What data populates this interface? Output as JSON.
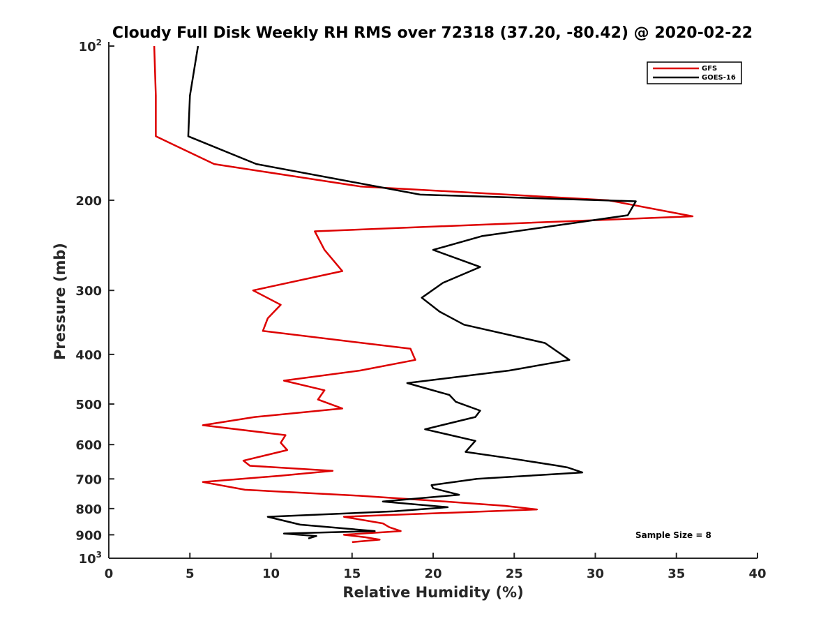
{
  "chart_data": {
    "type": "line",
    "title": "Cloudy Full Disk Weekly RH RMS over 72318 (37.20, -80.42) @ 2020-02-22",
    "xlabel": "Relative Humidity (%)",
    "ylabel": "Pressure (mb)",
    "xlim": [
      0,
      40
    ],
    "ylim": [
      100,
      1000
    ],
    "yscale": "log",
    "yreversed": true,
    "xticks": [
      0,
      5,
      10,
      15,
      20,
      25,
      30,
      35,
      40
    ],
    "yticks": [
      {
        "value": 100,
        "label": "10",
        "sup": "2"
      },
      {
        "value": 200,
        "label": "200",
        "sup": ""
      },
      {
        "value": 300,
        "label": "300",
        "sup": ""
      },
      {
        "value": 400,
        "label": "400",
        "sup": ""
      },
      {
        "value": 500,
        "label": "500",
        "sup": ""
      },
      {
        "value": 600,
        "label": "600",
        "sup": ""
      },
      {
        "value": 700,
        "label": "700",
        "sup": ""
      },
      {
        "value": 800,
        "label": "800",
        "sup": ""
      },
      {
        "value": 900,
        "label": "900",
        "sup": ""
      },
      {
        "value": 1000,
        "label": "10",
        "sup": "3"
      }
    ],
    "legend": {
      "position": "top-right",
      "entries": [
        "GFS",
        "GOES-16"
      ]
    },
    "annotation": "Sample Size = 8",
    "series": [
      {
        "name": "GFS",
        "color": "#dd0000",
        "points": [
          [
            2.8,
            100
          ],
          [
            2.9,
            125
          ],
          [
            2.9,
            150
          ],
          [
            6.5,
            170
          ],
          [
            15.5,
            188
          ],
          [
            30.8,
            200
          ],
          [
            36.0,
            215
          ],
          [
            12.7,
            230
          ],
          [
            13.3,
            250
          ],
          [
            14.4,
            275
          ],
          [
            8.9,
            300
          ],
          [
            10.6,
            320
          ],
          [
            9.8,
            340
          ],
          [
            9.5,
            360
          ],
          [
            18.6,
            390
          ],
          [
            18.9,
            410
          ],
          [
            15.5,
            430
          ],
          [
            10.8,
            450
          ],
          [
            13.3,
            470
          ],
          [
            12.9,
            490
          ],
          [
            14.4,
            510
          ],
          [
            9.0,
            530
          ],
          [
            5.8,
            550
          ],
          [
            10.9,
            575
          ],
          [
            10.6,
            595
          ],
          [
            11.0,
            615
          ],
          [
            8.3,
            645
          ],
          [
            8.7,
            660
          ],
          [
            13.8,
            675
          ],
          [
            10.6,
            690
          ],
          [
            5.8,
            710
          ],
          [
            8.4,
            735
          ],
          [
            15.4,
            755
          ],
          [
            19.5,
            770
          ],
          [
            24.4,
            790
          ],
          [
            26.4,
            803
          ],
          [
            14.5,
            830
          ],
          [
            16.9,
            855
          ],
          [
            17.3,
            870
          ],
          [
            18.0,
            885
          ],
          [
            14.5,
            900
          ],
          [
            15.8,
            910
          ],
          [
            16.7,
            920
          ],
          [
            15.0,
            930
          ]
        ]
      },
      {
        "name": "GOES-16",
        "color": "#000000",
        "points": [
          [
            5.5,
            100
          ],
          [
            5.0,
            125
          ],
          [
            4.9,
            150
          ],
          [
            9.1,
            170
          ],
          [
            19.2,
            195
          ],
          [
            32.5,
            201
          ],
          [
            32.0,
            214
          ],
          [
            23.0,
            235
          ],
          [
            20.0,
            250
          ],
          [
            22.9,
            270
          ],
          [
            20.6,
            290
          ],
          [
            19.3,
            310
          ],
          [
            20.4,
            330
          ],
          [
            21.9,
            350
          ],
          [
            26.9,
            380
          ],
          [
            28.4,
            410
          ],
          [
            24.7,
            430
          ],
          [
            18.4,
            455
          ],
          [
            21.0,
            480
          ],
          [
            21.4,
            495
          ],
          [
            22.9,
            515
          ],
          [
            22.6,
            530
          ],
          [
            19.5,
            560
          ],
          [
            22.6,
            590
          ],
          [
            22.0,
            620
          ],
          [
            25.0,
            640
          ],
          [
            27.7,
            660
          ],
          [
            28.3,
            665
          ],
          [
            29.2,
            680
          ],
          [
            22.7,
            700
          ],
          [
            19.9,
            720
          ],
          [
            20.0,
            730
          ],
          [
            21.6,
            752
          ],
          [
            16.9,
            775
          ],
          [
            20.9,
            795
          ],
          [
            17.6,
            810
          ],
          [
            9.8,
            830
          ],
          [
            11.8,
            860
          ],
          [
            16.4,
            885
          ],
          [
            10.8,
            895
          ],
          [
            12.8,
            905
          ],
          [
            12.3,
            915
          ]
        ]
      }
    ]
  }
}
